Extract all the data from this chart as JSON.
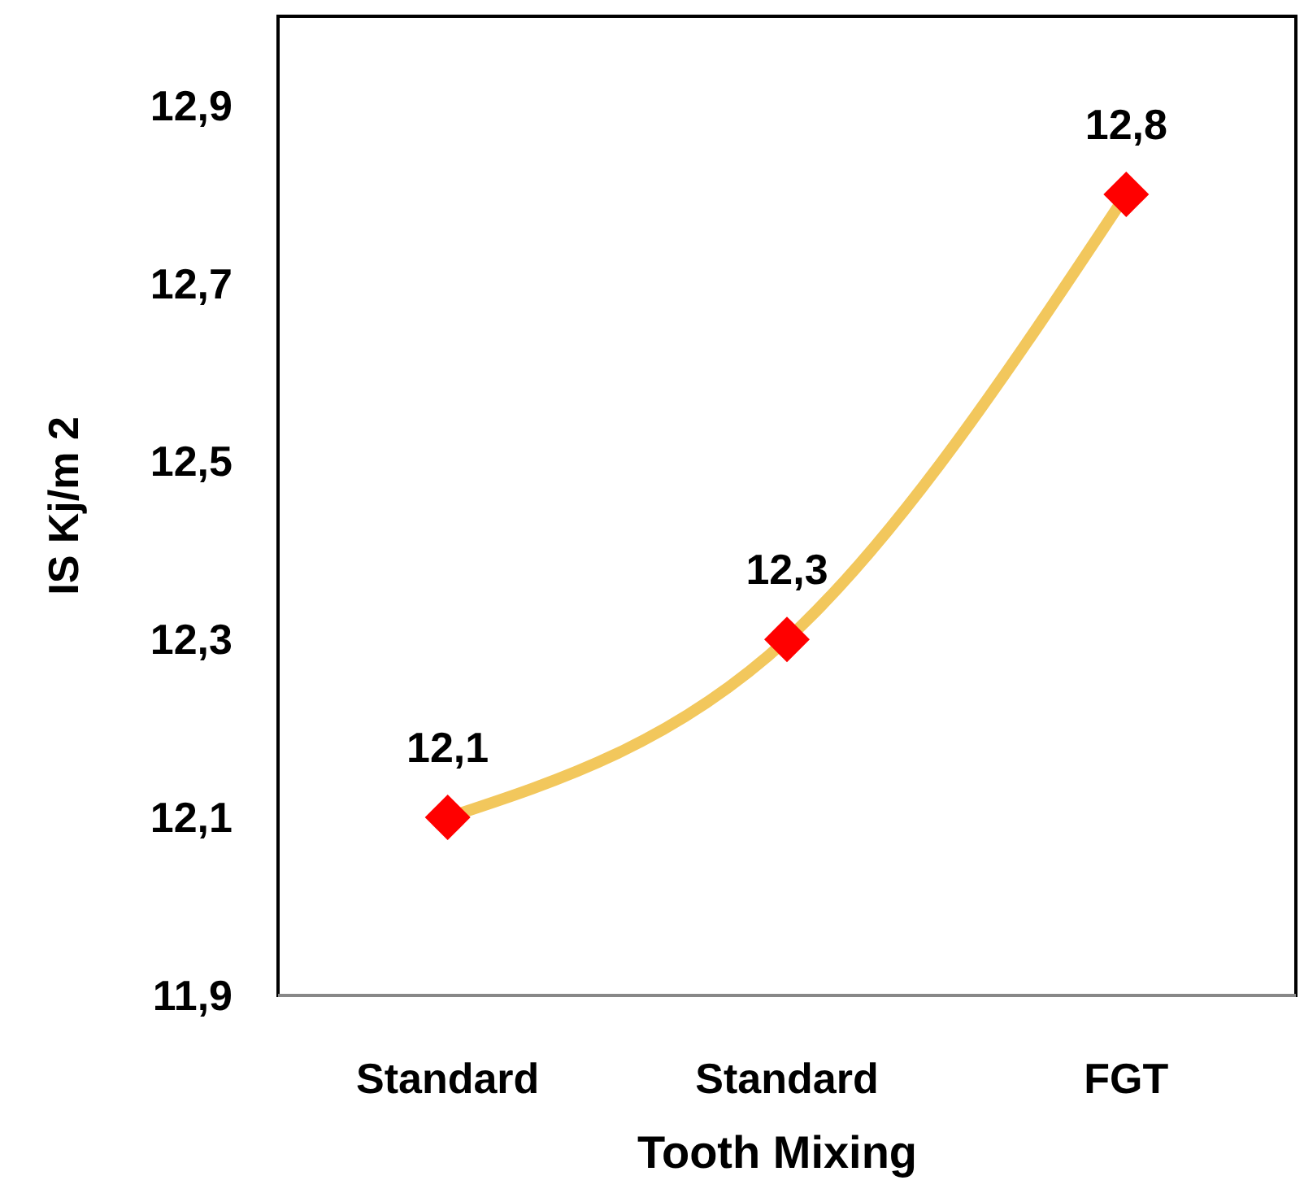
{
  "chart_data": {
    "type": "line",
    "xlabel": "Tooth Mixing",
    "ylabel": "IS Kj/m 2",
    "categories": [
      "Standard",
      "Standard",
      "FGT"
    ],
    "series": [
      {
        "color": "#f2c75c",
        "values": [
          12.1,
          12.3,
          12.8
        ],
        "value_labels": [
          "12,1",
          "12,3",
          "12,8"
        ],
        "colors": [
          "#ff0000",
          "#ff0000",
          "#ff0000"
        ]
      }
    ],
    "marker": "diamond",
    "line_style": "solid",
    "grid": false,
    "ylim": [
      11.9,
      13.0
    ],
    "yticks": [
      {
        "value": 11.9,
        "label": "11,9"
      },
      {
        "value": 12.1,
        "label": "12,1"
      },
      {
        "value": 12.3,
        "label": "12,3"
      },
      {
        "value": 12.5,
        "label": "12,5"
      },
      {
        "value": 12.7,
        "label": "12,7"
      },
      {
        "value": 12.9,
        "label": "12,9"
      }
    ]
  }
}
